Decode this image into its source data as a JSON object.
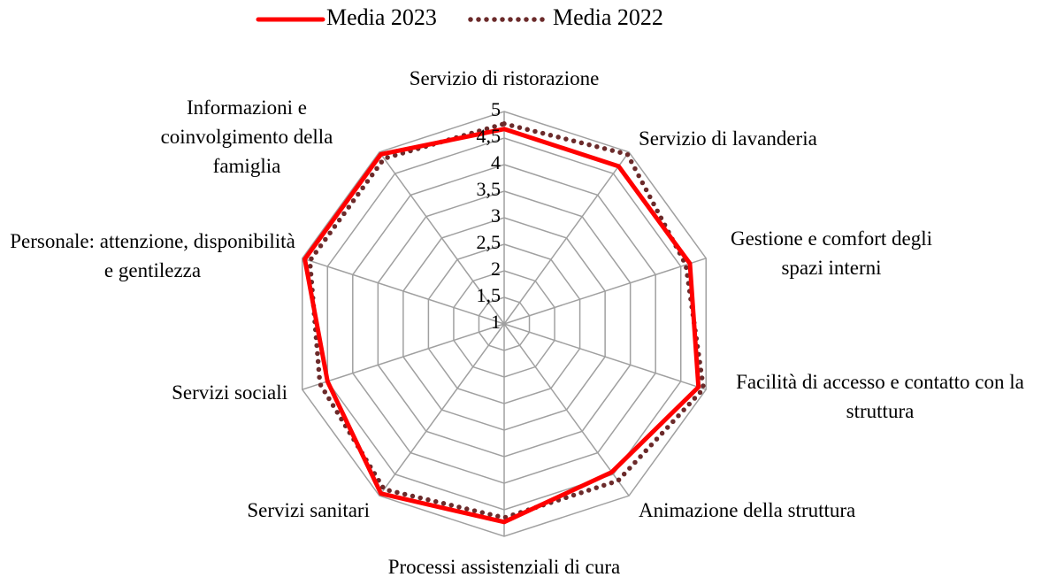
{
  "chart_data": {
    "type": "radar",
    "categories": [
      "Servizio di ristorazione",
      "Servizio di lavanderia",
      "Gestione e comfort degli spazi interni",
      "Facilità di accesso e contatto con la struttura",
      "Animazione della struttura",
      "Processi assistenziali di cura",
      "Servizi sanitari",
      "Servizi sociali",
      "Personale: attenzione, disponibilità e gentilezza",
      "Informazioni e coinvolgimento della famiglia"
    ],
    "series": [
      {
        "name": "Media 2023",
        "color": "#ff0000",
        "values": [
          4.67,
          4.67,
          4.68,
          4.85,
          4.45,
          4.73,
          4.95,
          4.5,
          4.95,
          4.95
        ]
      },
      {
        "name": "Media 2022",
        "color": "#6b2a2a",
        "values": [
          4.77,
          4.95,
          4.6,
          4.95,
          4.65,
          4.65,
          4.85,
          4.65,
          4.85,
          4.85
        ]
      }
    ],
    "rlim": [
      1,
      5
    ],
    "rticks": [
      1,
      {
        "value": 1.5,
        "label": "1,5"
      },
      2,
      {
        "value": 2.5,
        "label": "2,5"
      },
      3,
      {
        "value": 3.5,
        "label": "3,5"
      },
      4,
      {
        "value": 4.5,
        "label": "4,5"
      },
      5
    ],
    "grid": true,
    "legend": "top"
  }
}
